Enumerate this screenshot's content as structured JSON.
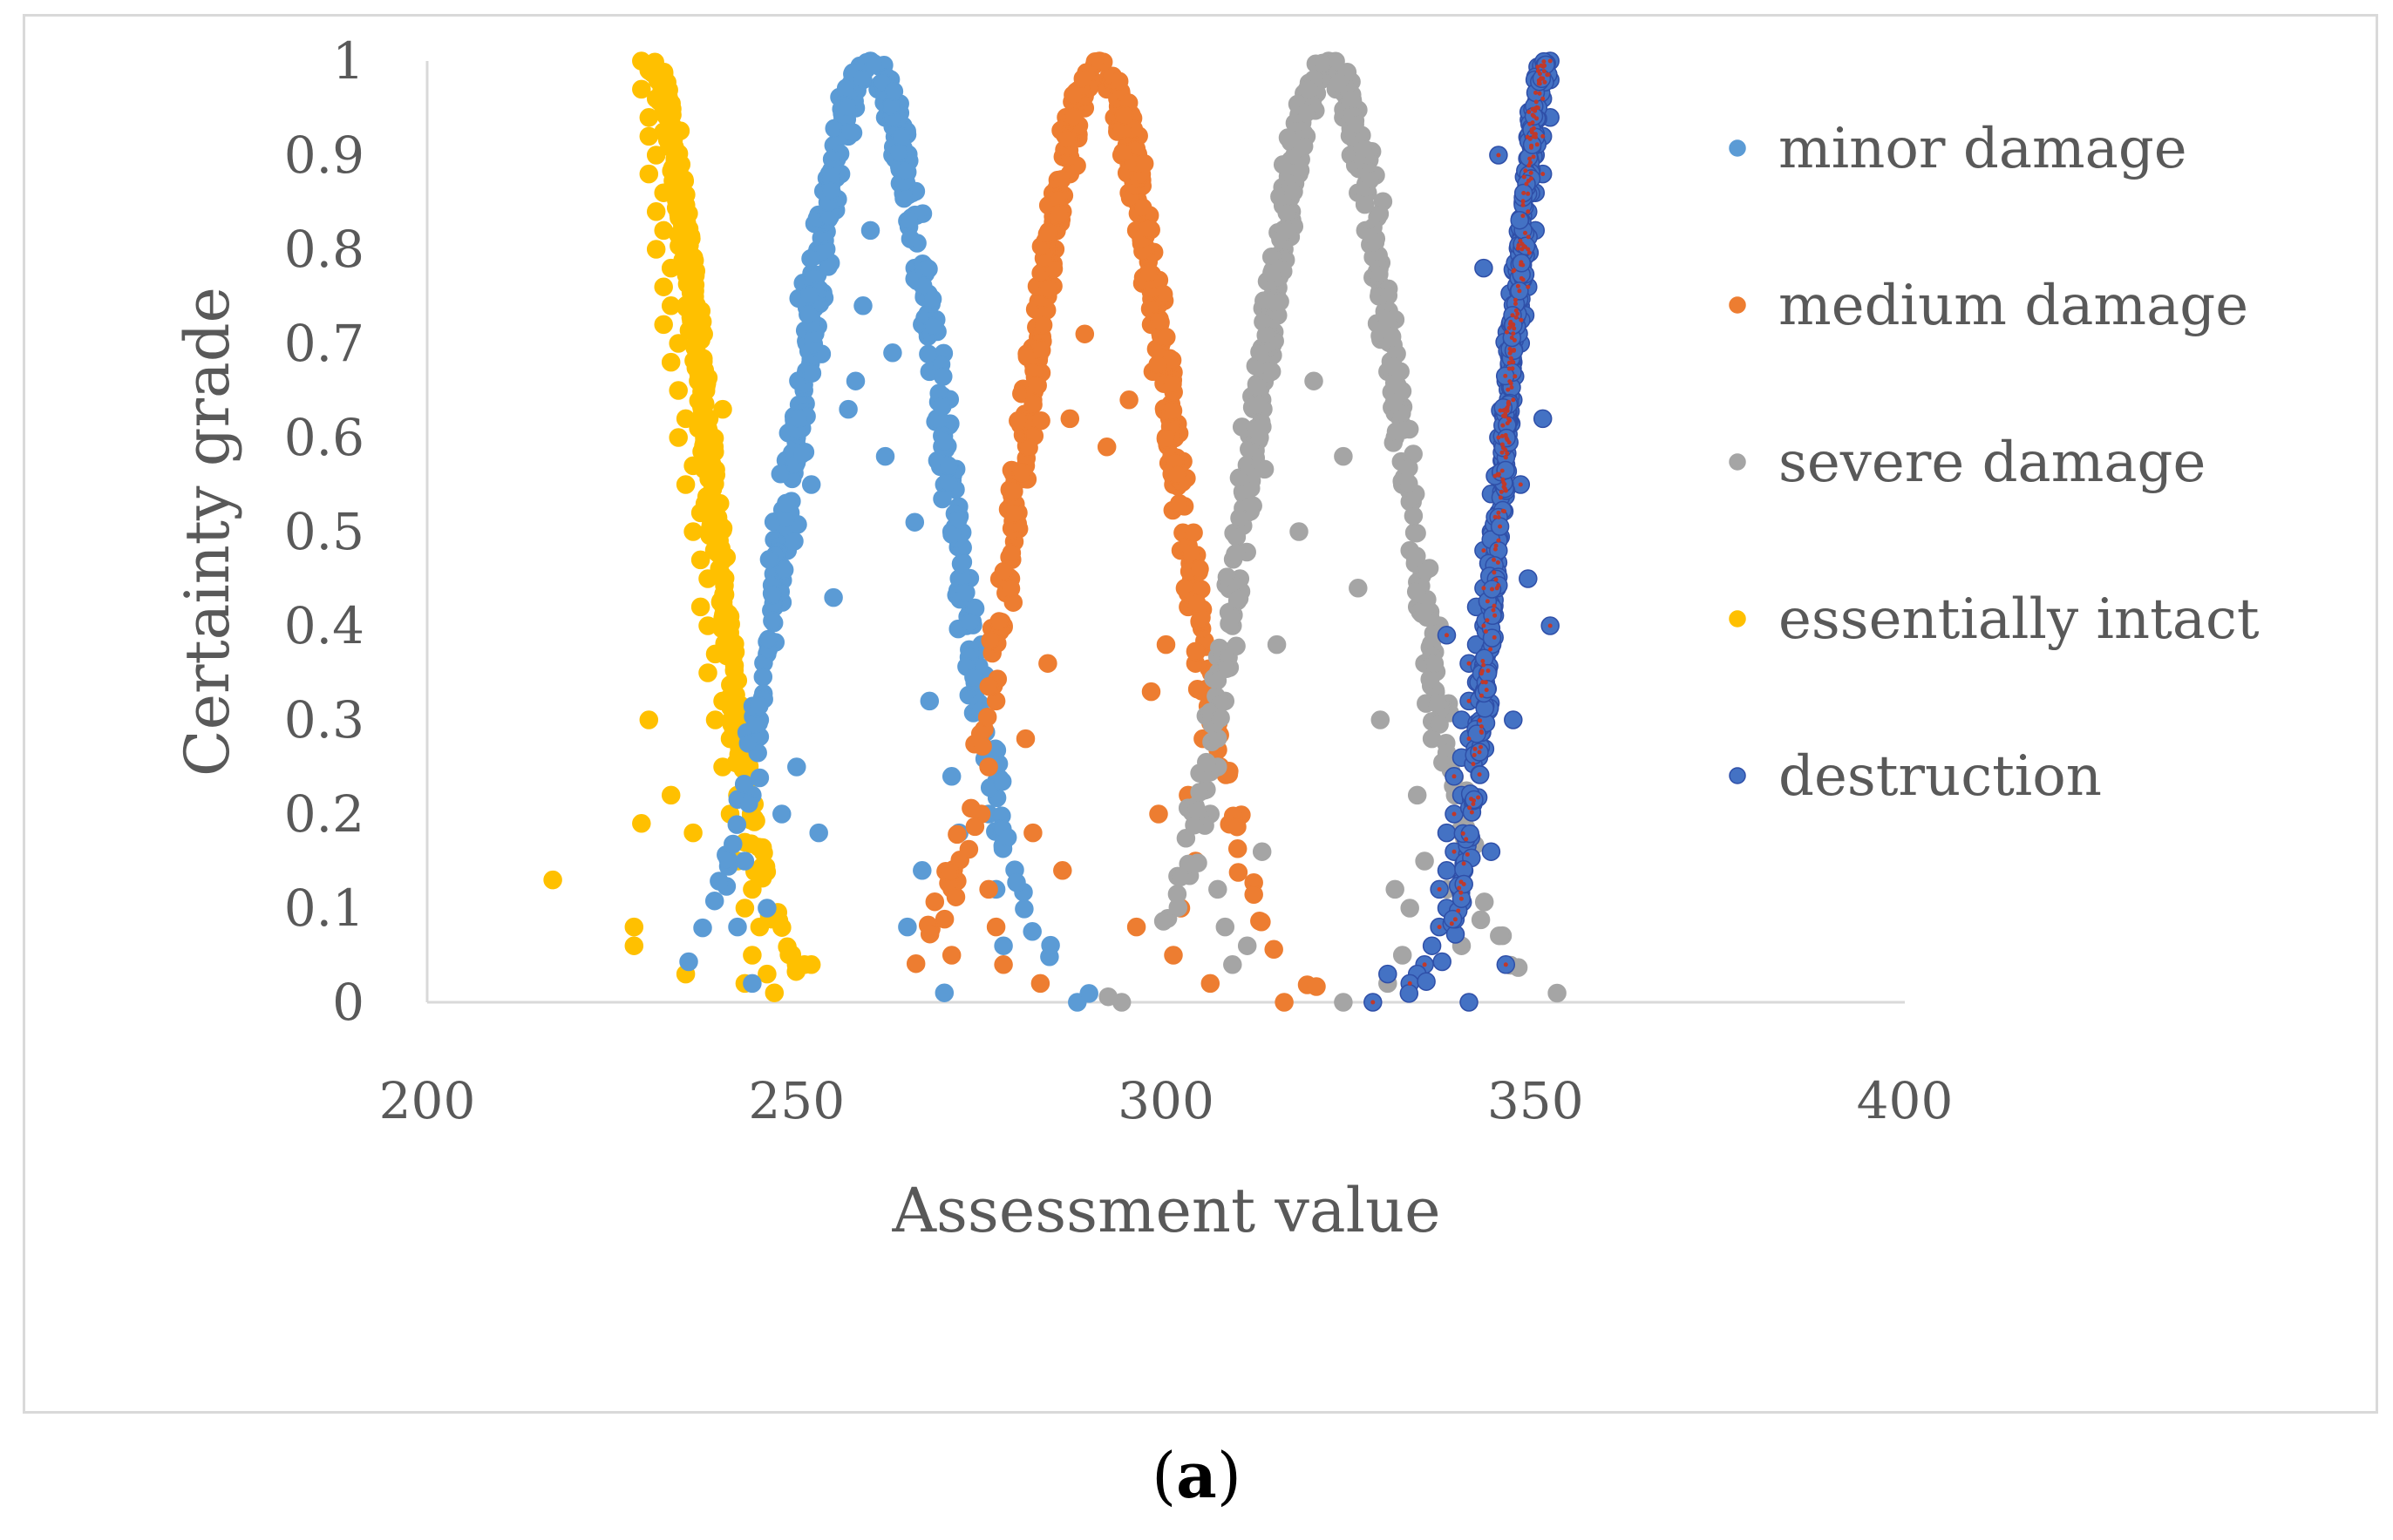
{
  "caption": {
    "open": "(",
    "letter": "a",
    "close": ")"
  },
  "chart_data": {
    "type": "scatter",
    "title": "",
    "xlabel": "Assessment value",
    "ylabel": "Certainty grade",
    "xlim": [
      200,
      400
    ],
    "ylim": [
      0,
      1
    ],
    "x_ticks": [
      200,
      250,
      300,
      350,
      400
    ],
    "y_ticks": [
      0,
      0.1,
      0.2,
      0.3,
      0.4,
      0.5,
      0.6,
      0.7,
      0.8,
      0.9,
      1
    ],
    "y_tick_labels": [
      "0",
      "0.1",
      "0.2",
      "0.3",
      "0.4",
      "0.5",
      "0.6",
      "0.7",
      "0.8",
      "0.9",
      "1"
    ],
    "grid": false,
    "legend_position": "right",
    "series": [
      {
        "name": "minor damage",
        "color": "#5b9bd5",
        "marker_edge": "#5b9bd5",
        "center": 260,
        "spread": 16,
        "points": [
          [
            260,
            1.0
          ],
          [
            259,
            0.98
          ],
          [
            261,
            0.97
          ],
          [
            258,
            0.95
          ],
          [
            262,
            0.94
          ],
          [
            257,
            0.92
          ],
          [
            263,
            0.9
          ],
          [
            256,
            0.88
          ],
          [
            264,
            0.87
          ],
          [
            255,
            0.85
          ],
          [
            265,
            0.83
          ],
          [
            254,
            0.8
          ],
          [
            266,
            0.78
          ],
          [
            253,
            0.75
          ],
          [
            267,
            0.72
          ],
          [
            252,
            0.7
          ],
          [
            268,
            0.67
          ],
          [
            251,
            0.65
          ],
          [
            269,
            0.62
          ],
          [
            250,
            0.6
          ],
          [
            270,
            0.55
          ],
          [
            249,
            0.52
          ],
          [
            271,
            0.5
          ],
          [
            248,
            0.48
          ],
          [
            272,
            0.45
          ],
          [
            247,
            0.42
          ],
          [
            273,
            0.4
          ],
          [
            246,
            0.37
          ],
          [
            274,
            0.35
          ],
          [
            245,
            0.3
          ],
          [
            275,
            0.28
          ],
          [
            244,
            0.22
          ],
          [
            276,
            0.2
          ],
          [
            243,
            0.15
          ],
          [
            277,
            0.12
          ],
          [
            242,
            0.08
          ],
          [
            278,
            0.06
          ],
          [
            244,
            0.02
          ],
          [
            270,
            0.01
          ],
          [
            288,
            0.0
          ],
          [
            262,
            0.58
          ],
          [
            258,
            0.66
          ],
          [
            255,
            0.43
          ],
          [
            266,
            0.51
          ],
          [
            252,
            0.55
          ],
          [
            268,
            0.32
          ],
          [
            250,
            0.25
          ],
          [
            271,
            0.24
          ],
          [
            253,
            0.18
          ],
          [
            267,
            0.14
          ],
          [
            260,
            0.82
          ],
          [
            259,
            0.74
          ],
          [
            263,
            0.69
          ],
          [
            257,
            0.63
          ],
          [
            248,
            0.2
          ],
          [
            265,
            0.08
          ],
          [
            246,
            0.1
          ],
          [
            272,
            0.18
          ]
        ]
      },
      {
        "name": "medium damage",
        "color": "#ed7d31",
        "marker_edge": "#ed7d31",
        "center": 291,
        "spread": 16,
        "points": [
          [
            291,
            1.0
          ],
          [
            290,
            0.98
          ],
          [
            292,
            0.97
          ],
          [
            289,
            0.95
          ],
          [
            293,
            0.94
          ],
          [
            288,
            0.92
          ],
          [
            294,
            0.9
          ],
          [
            287,
            0.88
          ],
          [
            295,
            0.86
          ],
          [
            286,
            0.84
          ],
          [
            296,
            0.82
          ],
          [
            285,
            0.8
          ],
          [
            297,
            0.77
          ],
          [
            284,
            0.75
          ],
          [
            298,
            0.72
          ],
          [
            283,
            0.7
          ],
          [
            299,
            0.67
          ],
          [
            282,
            0.64
          ],
          [
            300,
            0.6
          ],
          [
            281,
            0.57
          ],
          [
            301,
            0.55
          ],
          [
            280,
            0.52
          ],
          [
            302,
            0.48
          ],
          [
            279,
            0.45
          ],
          [
            303,
            0.42
          ],
          [
            278,
            0.4
          ],
          [
            304,
            0.36
          ],
          [
            277,
            0.32
          ],
          [
            305,
            0.28
          ],
          [
            276,
            0.25
          ],
          [
            303,
            0.22
          ],
          [
            275,
            0.2
          ],
          [
            304,
            0.15
          ],
          [
            276,
            0.12
          ],
          [
            302,
            0.1
          ],
          [
            277,
            0.08
          ],
          [
            301,
            0.05
          ],
          [
            278,
            0.04
          ],
          [
            316,
            0.0
          ],
          [
            271,
            0.05
          ],
          [
            287,
            0.62
          ],
          [
            295,
            0.64
          ],
          [
            289,
            0.71
          ],
          [
            292,
            0.59
          ],
          [
            284,
            0.36
          ],
          [
            298,
            0.33
          ],
          [
            282,
            0.18
          ],
          [
            299,
            0.2
          ],
          [
            286,
            0.14
          ],
          [
            296,
            0.08
          ],
          [
            283,
            0.02
          ],
          [
            306,
            0.02
          ],
          [
            300,
            0.38
          ],
          [
            281,
            0.28
          ]
        ]
      },
      {
        "name": "severe damage",
        "color": "#a5a5a5",
        "marker_edge": "#a5a5a5",
        "center": 322,
        "spread": 16,
        "points": [
          [
            322,
            1.0
          ],
          [
            321,
            0.98
          ],
          [
            323,
            0.97
          ],
          [
            320,
            0.95
          ],
          [
            324,
            0.94
          ],
          [
            319,
            0.92
          ],
          [
            325,
            0.9
          ],
          [
            318,
            0.88
          ],
          [
            326,
            0.86
          ],
          [
            317,
            0.84
          ],
          [
            327,
            0.82
          ],
          [
            316,
            0.8
          ],
          [
            328,
            0.77
          ],
          [
            315,
            0.75
          ],
          [
            329,
            0.72
          ],
          [
            314,
            0.7
          ],
          [
            330,
            0.67
          ],
          [
            313,
            0.64
          ],
          [
            331,
            0.6
          ],
          [
            312,
            0.57
          ],
          [
            332,
            0.55
          ],
          [
            311,
            0.52
          ],
          [
            333,
            0.48
          ],
          [
            310,
            0.45
          ],
          [
            334,
            0.42
          ],
          [
            309,
            0.4
          ],
          [
            335,
            0.36
          ],
          [
            308,
            0.32
          ],
          [
            336,
            0.28
          ],
          [
            307,
            0.25
          ],
          [
            334,
            0.22
          ],
          [
            306,
            0.2
          ],
          [
            335,
            0.15
          ],
          [
            307,
            0.12
          ],
          [
            333,
            0.1
          ],
          [
            308,
            0.08
          ],
          [
            332,
            0.05
          ],
          [
            309,
            0.04
          ],
          [
            294,
            0.0
          ],
          [
            324,
            0.0
          ],
          [
            320,
            0.66
          ],
          [
            324,
            0.58
          ],
          [
            318,
            0.5
          ],
          [
            326,
            0.44
          ],
          [
            315,
            0.38
          ],
          [
            329,
            0.3
          ],
          [
            313,
            0.16
          ],
          [
            331,
            0.12
          ],
          [
            311,
            0.06
          ],
          [
            330,
            0.02
          ],
          [
            337,
            0.4
          ],
          [
            338,
            0.12
          ],
          [
            340,
            0.06
          ]
        ]
      },
      {
        "name": "essentially intact",
        "color": "#ffc000",
        "marker_edge": "#ffc000",
        "center": 230,
        "spread": 14,
        "points": [
          [
            229,
            1.0
          ],
          [
            230,
            0.99
          ],
          [
            229,
            0.97
          ],
          [
            231,
            0.96
          ],
          [
            230,
            0.94
          ],
          [
            230,
            0.92
          ],
          [
            231,
            0.9
          ],
          [
            230,
            0.88
          ],
          [
            232,
            0.86
          ],
          [
            231,
            0.84
          ],
          [
            232,
            0.82
          ],
          [
            231,
            0.8
          ],
          [
            233,
            0.78
          ],
          [
            232,
            0.76
          ],
          [
            233,
            0.74
          ],
          [
            232,
            0.72
          ],
          [
            234,
            0.7
          ],
          [
            233,
            0.68
          ],
          [
            234,
            0.65
          ],
          [
            235,
            0.62
          ],
          [
            234,
            0.6
          ],
          [
            236,
            0.57
          ],
          [
            235,
            0.55
          ],
          [
            237,
            0.52
          ],
          [
            236,
            0.5
          ],
          [
            237,
            0.47
          ],
          [
            238,
            0.45
          ],
          [
            237,
            0.42
          ],
          [
            238,
            0.4
          ],
          [
            239,
            0.37
          ],
          [
            238,
            0.35
          ],
          [
            240,
            0.32
          ],
          [
            239,
            0.3
          ],
          [
            241,
            0.28
          ],
          [
            240,
            0.25
          ],
          [
            242,
            0.22
          ],
          [
            241,
            0.2
          ],
          [
            243,
            0.17
          ],
          [
            242,
            0.15
          ],
          [
            244,
            0.12
          ],
          [
            243,
            0.1
          ],
          [
            245,
            0.08
          ],
          [
            244,
            0.05
          ],
          [
            246,
            0.03
          ],
          [
            235,
            0.03
          ],
          [
            243,
            0.02
          ],
          [
            247,
            0.01
          ],
          [
            217,
            0.13
          ],
          [
            228,
            0.08
          ],
          [
            229,
            0.19
          ],
          [
            240,
            0.63
          ],
          [
            241,
            0.41
          ],
          [
            252,
            0.04
          ],
          [
            230,
            0.3
          ],
          [
            233,
            0.22
          ],
          [
            228,
            0.06
          ],
          [
            236,
            0.18
          ],
          [
            245,
            0.14
          ]
        ]
      },
      {
        "name": "destruction",
        "color": "#4472c4",
        "marker_edge": "#2f4fa8",
        "center": 350,
        "spread": 12,
        "points": [
          [
            352,
            1.0
          ],
          [
            352,
            0.98
          ],
          [
            351,
            0.96
          ],
          [
            352,
            0.94
          ],
          [
            351,
            0.92
          ],
          [
            350,
            0.9
          ],
          [
            351,
            0.88
          ],
          [
            350,
            0.86
          ],
          [
            349,
            0.84
          ],
          [
            350,
            0.82
          ],
          [
            349,
            0.8
          ],
          [
            348,
            0.78
          ],
          [
            349,
            0.76
          ],
          [
            348,
            0.74
          ],
          [
            347,
            0.72
          ],
          [
            348,
            0.7
          ],
          [
            347,
            0.68
          ],
          [
            346,
            0.66
          ],
          [
            347,
            0.64
          ],
          [
            346,
            0.62
          ],
          [
            345,
            0.6
          ],
          [
            346,
            0.58
          ],
          [
            345,
            0.56
          ],
          [
            344,
            0.54
          ],
          [
            345,
            0.52
          ],
          [
            344,
            0.5
          ],
          [
            343,
            0.48
          ],
          [
            344,
            0.46
          ],
          [
            343,
            0.44
          ],
          [
            342,
            0.42
          ],
          [
            343,
            0.4
          ],
          [
            342,
            0.38
          ],
          [
            341,
            0.36
          ],
          [
            342,
            0.34
          ],
          [
            341,
            0.32
          ],
          [
            340,
            0.3
          ],
          [
            341,
            0.28
          ],
          [
            340,
            0.26
          ],
          [
            339,
            0.24
          ],
          [
            340,
            0.22
          ],
          [
            339,
            0.2
          ],
          [
            338,
            0.18
          ],
          [
            339,
            0.16
          ],
          [
            338,
            0.14
          ],
          [
            337,
            0.12
          ],
          [
            338,
            0.1
          ],
          [
            337,
            0.08
          ],
          [
            336,
            0.06
          ],
          [
            335,
            0.04
          ],
          [
            334,
            0.03
          ],
          [
            333,
            0.02
          ],
          [
            330,
            0.03
          ],
          [
            328,
            0.0
          ],
          [
            341,
            0.0
          ],
          [
            345,
            0.9
          ],
          [
            343,
            0.78
          ],
          [
            348,
            0.55
          ],
          [
            351,
            0.62
          ],
          [
            352,
            0.4
          ],
          [
            347,
            0.3
          ],
          [
            338,
            0.39
          ],
          [
            344,
            0.16
          ],
          [
            346,
            0.04
          ],
          [
            349,
            0.45
          ]
        ]
      }
    ]
  }
}
